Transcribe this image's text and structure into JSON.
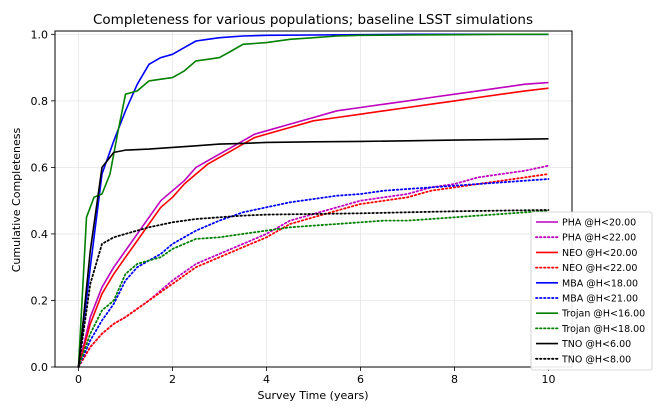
{
  "chart_data": {
    "type": "line",
    "title": "Completeness for various populations; baseline LSST simulations",
    "xlabel": "Survey Time (years)",
    "ylabel": "Cumulative Completeness",
    "xlim": [
      -0.5,
      10.5
    ],
    "ylim": [
      0.0,
      1.01
    ],
    "xticks": [
      0,
      2,
      4,
      6,
      8,
      10
    ],
    "yticks": [
      0.0,
      0.2,
      0.4,
      0.6,
      0.8,
      1.0
    ],
    "grid": true,
    "legend_position": "lower-right",
    "series": [
      {
        "name": "PHA @H<20.00",
        "color": "#bf00bf",
        "style": "solid",
        "x": [
          0,
          0.25,
          0.5,
          0.75,
          1,
          1.25,
          1.5,
          1.75,
          2,
          2.25,
          2.5,
          2.75,
          3,
          3.25,
          3.5,
          3.75,
          4,
          4.5,
          5,
          5.5,
          6,
          6.5,
          7,
          7.5,
          8,
          8.5,
          9,
          9.5,
          10
        ],
        "y": [
          0.0,
          0.15,
          0.24,
          0.3,
          0.35,
          0.4,
          0.45,
          0.5,
          0.53,
          0.56,
          0.6,
          0.62,
          0.64,
          0.66,
          0.68,
          0.7,
          0.71,
          0.73,
          0.75,
          0.77,
          0.78,
          0.79,
          0.8,
          0.81,
          0.82,
          0.83,
          0.84,
          0.85,
          0.855
        ]
      },
      {
        "name": "PHA @H<22.00",
        "color": "#bf00bf",
        "style": "dotted",
        "x": [
          0,
          0.25,
          0.5,
          0.75,
          1,
          1.5,
          2,
          2.5,
          3,
          3.5,
          4,
          4.5,
          5,
          5.5,
          6,
          6.5,
          7,
          7.5,
          8,
          8.5,
          9,
          9.5,
          10
        ],
        "y": [
          0.0,
          0.06,
          0.1,
          0.13,
          0.15,
          0.2,
          0.26,
          0.31,
          0.34,
          0.37,
          0.4,
          0.44,
          0.46,
          0.48,
          0.5,
          0.51,
          0.52,
          0.54,
          0.55,
          0.57,
          0.58,
          0.59,
          0.605
        ]
      },
      {
        "name": "NEO @H<20.00",
        "color": "#ff0000",
        "style": "solid",
        "x": [
          0,
          0.25,
          0.5,
          0.75,
          1,
          1.25,
          1.5,
          1.75,
          2,
          2.25,
          2.5,
          2.75,
          3,
          3.25,
          3.5,
          3.75,
          4,
          4.5,
          5,
          5.5,
          6,
          6.5,
          7,
          7.5,
          8,
          8.5,
          9,
          9.5,
          10
        ],
        "y": [
          0.0,
          0.13,
          0.22,
          0.28,
          0.33,
          0.38,
          0.43,
          0.48,
          0.51,
          0.55,
          0.58,
          0.61,
          0.63,
          0.65,
          0.67,
          0.69,
          0.7,
          0.72,
          0.74,
          0.75,
          0.76,
          0.77,
          0.78,
          0.79,
          0.8,
          0.81,
          0.82,
          0.83,
          0.838
        ]
      },
      {
        "name": "NEO @H<22.00",
        "color": "#ff0000",
        "style": "dotted",
        "x": [
          0,
          0.25,
          0.5,
          0.75,
          1,
          1.5,
          2,
          2.5,
          3,
          3.5,
          4,
          4.5,
          5,
          5.5,
          6,
          6.5,
          7,
          7.5,
          8,
          8.5,
          9,
          9.5,
          10
        ],
        "y": [
          0.0,
          0.06,
          0.1,
          0.13,
          0.15,
          0.2,
          0.25,
          0.3,
          0.33,
          0.36,
          0.39,
          0.43,
          0.45,
          0.47,
          0.49,
          0.5,
          0.51,
          0.53,
          0.54,
          0.55,
          0.56,
          0.57,
          0.58
        ]
      },
      {
        "name": "MBA @H<18.00",
        "color": "#0000ff",
        "style": "solid",
        "x": [
          0,
          0.25,
          0.5,
          0.75,
          1,
          1.25,
          1.5,
          1.75,
          2,
          2.25,
          2.5,
          2.75,
          3,
          3.5,
          4,
          5,
          6,
          7,
          8,
          9,
          10
        ],
        "y": [
          0.0,
          0.3,
          0.58,
          0.68,
          0.77,
          0.85,
          0.91,
          0.93,
          0.94,
          0.96,
          0.98,
          0.985,
          0.99,
          0.995,
          0.997,
          0.998,
          0.999,
          1.0,
          1.0,
          1.0,
          1.0
        ]
      },
      {
        "name": "MBA @H<21.00",
        "color": "#0000ff",
        "style": "dotted",
        "x": [
          0,
          0.25,
          0.5,
          0.75,
          1,
          1.25,
          1.5,
          1.75,
          2,
          2.5,
          3,
          3.5,
          4,
          4.5,
          5,
          5.5,
          6,
          6.5,
          7,
          7.5,
          8,
          8.5,
          9,
          9.5,
          10
        ],
        "y": [
          0.0,
          0.08,
          0.14,
          0.19,
          0.26,
          0.3,
          0.32,
          0.34,
          0.37,
          0.41,
          0.44,
          0.465,
          0.48,
          0.495,
          0.505,
          0.515,
          0.52,
          0.53,
          0.535,
          0.54,
          0.545,
          0.55,
          0.555,
          0.56,
          0.565
        ]
      },
      {
        "name": "Trojan @H<16.00",
        "color": "#008000",
        "style": "solid",
        "x": [
          0,
          0.17,
          0.33,
          0.5,
          0.67,
          0.83,
          1,
          1.25,
          1.5,
          1.75,
          2,
          2.25,
          2.5,
          2.75,
          3,
          3.25,
          3.5,
          4,
          4.5,
          5,
          5.5,
          6,
          7,
          8,
          9,
          10
        ],
        "y": [
          0.0,
          0.45,
          0.51,
          0.52,
          0.58,
          0.7,
          0.82,
          0.83,
          0.86,
          0.865,
          0.87,
          0.89,
          0.92,
          0.925,
          0.93,
          0.95,
          0.97,
          0.975,
          0.985,
          0.99,
          0.995,
          0.997,
          0.998,
          0.999,
          1.0,
          1.0
        ]
      },
      {
        "name": "Trojan @H<18.00",
        "color": "#008000",
        "style": "dotted",
        "x": [
          0,
          0.25,
          0.5,
          0.75,
          1,
          1.25,
          1.5,
          1.75,
          2,
          2.25,
          2.5,
          3,
          3.5,
          4,
          4.5,
          5,
          5.5,
          6,
          6.5,
          7,
          7.5,
          8,
          8.5,
          9,
          9.5,
          10
        ],
        "y": [
          0.0,
          0.1,
          0.17,
          0.2,
          0.28,
          0.31,
          0.32,
          0.33,
          0.355,
          0.37,
          0.385,
          0.39,
          0.4,
          0.41,
          0.42,
          0.425,
          0.43,
          0.435,
          0.44,
          0.44,
          0.445,
          0.45,
          0.455,
          0.46,
          0.465,
          0.47
        ]
      },
      {
        "name": "TNO @H<6.00",
        "color": "#000000",
        "style": "solid",
        "x": [
          0,
          0.25,
          0.5,
          0.75,
          1,
          1.5,
          2,
          2.5,
          3,
          3.5,
          4,
          5,
          6,
          7,
          8,
          9,
          10
        ],
        "y": [
          0.0,
          0.35,
          0.6,
          0.645,
          0.652,
          0.655,
          0.66,
          0.665,
          0.67,
          0.672,
          0.675,
          0.677,
          0.678,
          0.68,
          0.682,
          0.684,
          0.686
        ]
      },
      {
        "name": "TNO @H<8.00",
        "color": "#000000",
        "style": "dotted",
        "x": [
          0,
          0.25,
          0.5,
          0.75,
          1,
          1.5,
          2,
          2.5,
          3,
          3.5,
          4,
          5,
          6,
          7,
          8,
          9,
          10
        ],
        "y": [
          0.0,
          0.25,
          0.37,
          0.39,
          0.4,
          0.42,
          0.435,
          0.445,
          0.45,
          0.455,
          0.458,
          0.46,
          0.462,
          0.465,
          0.468,
          0.47,
          0.472
        ]
      }
    ]
  }
}
